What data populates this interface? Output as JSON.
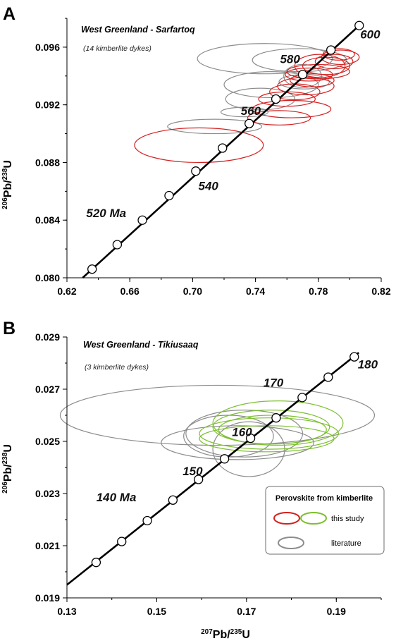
{
  "panels": [
    {
      "letter": "A",
      "title": "West Greenland - Sarfartoq",
      "subtitle": "(14 kimberlite dykes)",
      "ylabel_sup1": "206",
      "ylabel_main1": "Pb/",
      "ylabel_sup2": "238",
      "ylabel_main2": "U",
      "xlim": [
        0.62,
        0.82
      ],
      "ylim": [
        0.08,
        0.098
      ],
      "xticks": [
        "0.62",
        "0.66",
        "0.70",
        "0.74",
        "0.78",
        "0.82"
      ],
      "yticks": [
        "0.080",
        "0.084",
        "0.088",
        "0.092",
        "0.096"
      ],
      "age_labels": [
        {
          "text": "520 Ma",
          "x": 0.645,
          "y": 0.0842
        },
        {
          "text": "540",
          "x": 0.71,
          "y": 0.0861
        },
        {
          "text": "560",
          "x": 0.737,
          "y": 0.0913
        },
        {
          "text": "580",
          "x": 0.762,
          "y": 0.0949
        },
        {
          "text": "600",
          "x": 0.813,
          "y": 0.0966
        }
      ]
    },
    {
      "letter": "B",
      "title": "West Greenland - Tikiusaaq",
      "subtitle": "(3 kimberlite dykes)",
      "xlabel_sup1": "207",
      "xlabel_main1": "Pb/",
      "xlabel_sup2": "235",
      "xlabel_main2": "U",
      "ylabel_sup1": "206",
      "ylabel_main1": "Pb/",
      "ylabel_sup2": "238",
      "ylabel_main2": "U",
      "xlim": [
        0.13,
        0.2
      ],
      "ylim": [
        0.019,
        0.029
      ],
      "xticks": [
        "0.13",
        "0.15",
        "0.17",
        "0.19"
      ],
      "yticks": [
        "0.019",
        "0.021",
        "0.023",
        "0.025",
        "0.027",
        "0.029"
      ],
      "age_labels": [
        {
          "text": "140 Ma",
          "x": 0.141,
          "y": 0.0227
        },
        {
          "text": "150",
          "x": 0.158,
          "y": 0.0237
        },
        {
          "text": "160",
          "x": 0.169,
          "y": 0.0252
        },
        {
          "text": "170",
          "x": 0.176,
          "y": 0.0271
        },
        {
          "text": "180",
          "x": 0.197,
          "y": 0.0278
        }
      ]
    }
  ],
  "legend": {
    "title": "Perovskite from kimberlite",
    "items": [
      {
        "label": "this study",
        "colors": [
          "#d42020",
          "#7cbf2e"
        ]
      },
      {
        "label": "literature",
        "colors": [
          "#8c8c8c"
        ]
      }
    ]
  },
  "chart_data": [
    {
      "type": "scatter",
      "title": "West Greenland - Sarfartoq",
      "subtitle": "(14 kimberlite dykes)",
      "xlabel": "207Pb/235U",
      "ylabel": "206Pb/238U",
      "xlim": [
        0.62,
        0.82
      ],
      "ylim": [
        0.08,
        0.098
      ],
      "concordia_line": {
        "x": [
          0.63,
          0.806
        ],
        "y": [
          0.08,
          0.0975
        ]
      },
      "concordia_points": {
        "x": [
          0.636,
          0.652,
          0.668,
          0.685,
          0.702,
          0.719,
          0.736,
          0.753,
          0.77,
          0.788,
          0.806
        ],
        "y": [
          0.0806,
          0.0823,
          0.084,
          0.0857,
          0.0874,
          0.089,
          0.0907,
          0.0924,
          0.0941,
          0.0958,
          0.0975
        ]
      },
      "series": [
        {
          "name": "this study",
          "color": "#d42020",
          "ellipses": [
            {
              "cx": 0.704,
              "cy": 0.0892,
              "rx": 0.041,
              "ry": 0.0012
            },
            {
              "cx": 0.755,
              "cy": 0.0911,
              "rx": 0.02,
              "ry": 0.0005
            },
            {
              "cx": 0.763,
              "cy": 0.0917,
              "rx": 0.025,
              "ry": 0.0006
            },
            {
              "cx": 0.76,
              "cy": 0.0924,
              "rx": 0.018,
              "ry": 0.0005
            },
            {
              "cx": 0.765,
              "cy": 0.0929,
              "rx": 0.016,
              "ry": 0.00055
            },
            {
              "cx": 0.772,
              "cy": 0.0933,
              "rx": 0.018,
              "ry": 0.0006
            },
            {
              "cx": 0.776,
              "cy": 0.0937,
              "rx": 0.014,
              "ry": 0.00045
            },
            {
              "cx": 0.774,
              "cy": 0.0941,
              "rx": 0.015,
              "ry": 0.00045
            },
            {
              "cx": 0.78,
              "cy": 0.0943,
              "rx": 0.02,
              "ry": 0.0005
            },
            {
              "cx": 0.785,
              "cy": 0.0947,
              "rx": 0.015,
              "ry": 0.0006
            },
            {
              "cx": 0.79,
              "cy": 0.095,
              "rx": 0.012,
              "ry": 0.0005
            },
            {
              "cx": 0.794,
              "cy": 0.0953,
              "rx": 0.012,
              "ry": 0.0005
            },
            {
              "cx": 0.793,
              "cy": 0.0955,
              "rx": 0.01,
              "ry": 0.0004
            },
            {
              "cx": 0.781,
              "cy": 0.0947,
              "rx": 0.016,
              "ry": 0.0008
            }
          ]
        },
        {
          "name": "literature",
          "color": "#8c8c8c",
          "ellipses": [
            {
              "cx": 0.714,
              "cy": 0.0905,
              "rx": 0.03,
              "ry": 0.0005
            },
            {
              "cx": 0.733,
              "cy": 0.0915,
              "rx": 0.015,
              "ry": 0.00033
            },
            {
              "cx": 0.743,
              "cy": 0.0924,
              "rx": 0.022,
              "ry": 0.00075
            },
            {
              "cx": 0.75,
              "cy": 0.0934,
              "rx": 0.03,
              "ry": 0.0009
            },
            {
              "cx": 0.746,
              "cy": 0.0952,
              "rx": 0.043,
              "ry": 0.00105
            },
            {
              "cx": 0.768,
              "cy": 0.0951,
              "rx": 0.03,
              "ry": 0.0008
            },
            {
              "cx": 0.771,
              "cy": 0.0936,
              "rx": 0.016,
              "ry": 0.0005
            },
            {
              "cx": 0.77,
              "cy": 0.094,
              "rx": 0.012,
              "ry": 0.0008
            }
          ]
        }
      ]
    },
    {
      "type": "scatter",
      "title": "West Greenland - Tikiusaaq",
      "subtitle": "(3 kimberlite dykes)",
      "xlabel": "207Pb/235U",
      "ylabel": "206Pb/238U",
      "xlim": [
        0.13,
        0.2
      ],
      "ylim": [
        0.019,
        0.029
      ],
      "concordia_line": {
        "x": [
          0.13,
          0.195
        ],
        "y": [
          0.0195,
          0.0284
        ]
      },
      "concordia_points": {
        "x": [
          0.1365,
          0.1422,
          0.1479,
          0.1536,
          0.1593,
          0.1651,
          0.1709,
          0.1766,
          0.1824,
          0.1882,
          0.194
        ],
        "y": [
          0.02036,
          0.02116,
          0.02196,
          0.02275,
          0.02354,
          0.02433,
          0.02512,
          0.0259,
          0.02668,
          0.02746,
          0.02824
        ]
      },
      "series": [
        {
          "name": "this study",
          "color": "#7cbf2e",
          "ellipses": [
            {
              "cx": 0.177,
              "cy": 0.0257,
              "rx": 0.0145,
              "ry": 0.00085
            },
            {
              "cx": 0.1755,
              "cy": 0.02555,
              "rx": 0.013,
              "ry": 0.00065
            },
            {
              "cx": 0.175,
              "cy": 0.0253,
              "rx": 0.0155,
              "ry": 0.0006
            },
            {
              "cx": 0.1745,
              "cy": 0.0251,
              "rx": 0.015,
              "ry": 0.0005
            },
            {
              "cx": 0.1758,
              "cy": 0.02545,
              "rx": 0.012,
              "ry": 0.00055
            }
          ]
        },
        {
          "name": "literature",
          "color": "#8c8c8c",
          "ellipses": [
            {
              "cx": 0.1635,
              "cy": 0.026,
              "rx": 0.035,
              "ry": 0.00115
            },
            {
              "cx": 0.168,
              "cy": 0.02495,
              "rx": 0.017,
              "ry": 0.00065
            },
            {
              "cx": 0.166,
              "cy": 0.0252,
              "rx": 0.01,
              "ry": 0.0008
            },
            {
              "cx": 0.1695,
              "cy": 0.0253,
              "rx": 0.013,
              "ry": 0.0009
            },
            {
              "cx": 0.1705,
              "cy": 0.0247,
              "rx": 0.008,
              "ry": 0.00105
            }
          ]
        }
      ]
    }
  ]
}
